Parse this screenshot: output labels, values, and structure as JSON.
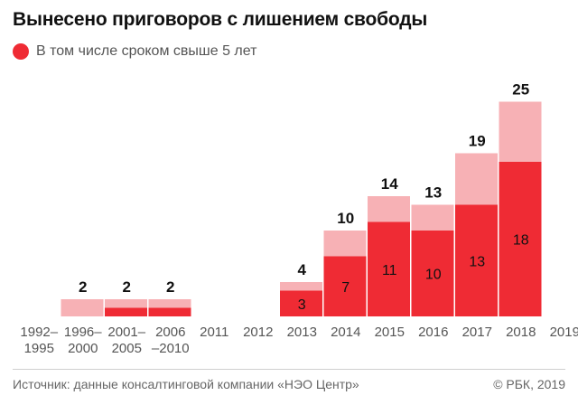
{
  "title": "Вынесено приговоров с лишением свободы",
  "legend": {
    "label": "В том числе сроком свыше 5 лет"
  },
  "colors": {
    "total": "#f7b1b5",
    "over5": "#ef2b34",
    "text": "#111111",
    "axis": "#555555"
  },
  "chart_data": {
    "type": "bar",
    "stacked": true,
    "categories": [
      "1992–\n1995",
      "1996–\n2000",
      "2001–\n2005",
      "2006\n–2010",
      "2011",
      "2012",
      "2013",
      "2014",
      "2015",
      "2016",
      "2017",
      "2018",
      "2019"
    ],
    "totals": [
      null,
      2,
      2,
      2,
      null,
      null,
      4,
      10,
      14,
      13,
      19,
      25,
      null
    ],
    "total_labels": [
      "",
      "2",
      "2",
      "2",
      "",
      "",
      "4",
      "10",
      "14",
      "13",
      "19",
      "25",
      ""
    ],
    "over5": [
      null,
      0,
      1,
      1,
      null,
      null,
      3,
      7,
      11,
      10,
      13,
      18,
      null
    ],
    "over5_labels": [
      "",
      "",
      "",
      "",
      "",
      "",
      "3",
      "7",
      "11",
      "10",
      "13",
      "18",
      ""
    ],
    "series": [
      {
        "name": "В том числе сроком свыше 5 лет"
      }
    ],
    "ylim": [
      0,
      25
    ],
    "legend_position": "top-left",
    "grid": false
  },
  "footer": {
    "source": "Источник: данные консалтинговой компании «НЭО Центр»",
    "copyright": "© РБК, 2019"
  }
}
